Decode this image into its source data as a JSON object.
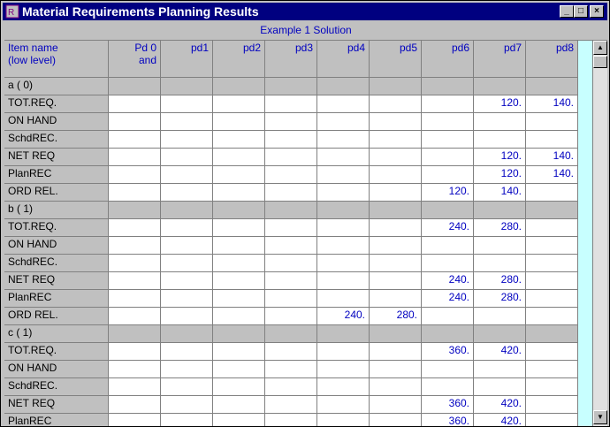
{
  "window": {
    "title": "Material Requirements Planning Results"
  },
  "table": {
    "caption": "Example 1 Solution",
    "header": [
      "Item name\n(low level)",
      "Pd 0\nand",
      "pd1",
      "pd2",
      "pd3",
      "pd4",
      "pd5",
      "pd6",
      "pd7",
      "pd8"
    ],
    "rows": [
      {
        "label": "a ( 0)",
        "group": true
      },
      {
        "label": "TOT.REQ.",
        "cells": [
          null,
          null,
          null,
          null,
          null,
          null,
          null,
          "120.",
          "140."
        ]
      },
      {
        "label": "ON HAND",
        "cells": [
          null,
          null,
          null,
          null,
          null,
          null,
          null,
          null,
          null
        ]
      },
      {
        "label": "SchdREC.",
        "cells": [
          null,
          null,
          null,
          null,
          null,
          null,
          null,
          null,
          null
        ]
      },
      {
        "label": "NET REQ",
        "cells": [
          null,
          null,
          null,
          null,
          null,
          null,
          null,
          "120.",
          "140."
        ]
      },
      {
        "label": "PlanREC",
        "cells": [
          null,
          null,
          null,
          null,
          null,
          null,
          null,
          "120.",
          "140."
        ]
      },
      {
        "label": "ORD REL.",
        "cells": [
          null,
          null,
          null,
          null,
          null,
          null,
          "120.",
          "140.",
          null
        ]
      },
      {
        "label": "b ( 1)",
        "group": true
      },
      {
        "label": "TOT.REQ.",
        "cells": [
          null,
          null,
          null,
          null,
          null,
          null,
          "240.",
          "280.",
          null
        ]
      },
      {
        "label": "ON HAND",
        "cells": [
          null,
          null,
          null,
          null,
          null,
          null,
          null,
          null,
          null
        ]
      },
      {
        "label": "SchdREC.",
        "cells": [
          null,
          null,
          null,
          null,
          null,
          null,
          null,
          null,
          null
        ]
      },
      {
        "label": "NET REQ",
        "cells": [
          null,
          null,
          null,
          null,
          null,
          null,
          "240.",
          "280.",
          null
        ]
      },
      {
        "label": "PlanREC",
        "cells": [
          null,
          null,
          null,
          null,
          null,
          null,
          "240.",
          "280.",
          null
        ]
      },
      {
        "label": "ORD REL.",
        "cells": [
          null,
          null,
          null,
          null,
          "240.",
          "280.",
          null,
          null,
          null
        ]
      },
      {
        "label": "c ( 1)",
        "group": true
      },
      {
        "label": "TOT.REQ.",
        "cells": [
          null,
          null,
          null,
          null,
          null,
          null,
          "360.",
          "420.",
          null
        ]
      },
      {
        "label": "ON HAND",
        "cells": [
          null,
          null,
          null,
          null,
          null,
          null,
          null,
          null,
          null
        ]
      },
      {
        "label": "SchdREC.",
        "cells": [
          null,
          null,
          null,
          null,
          null,
          null,
          null,
          null,
          null
        ]
      },
      {
        "label": "NET REQ",
        "cells": [
          null,
          null,
          null,
          null,
          null,
          null,
          "360.",
          "420.",
          null
        ]
      },
      {
        "label": "PlanREC",
        "cells": [
          null,
          null,
          null,
          null,
          null,
          null,
          "360.",
          "420.",
          null
        ]
      }
    ]
  }
}
